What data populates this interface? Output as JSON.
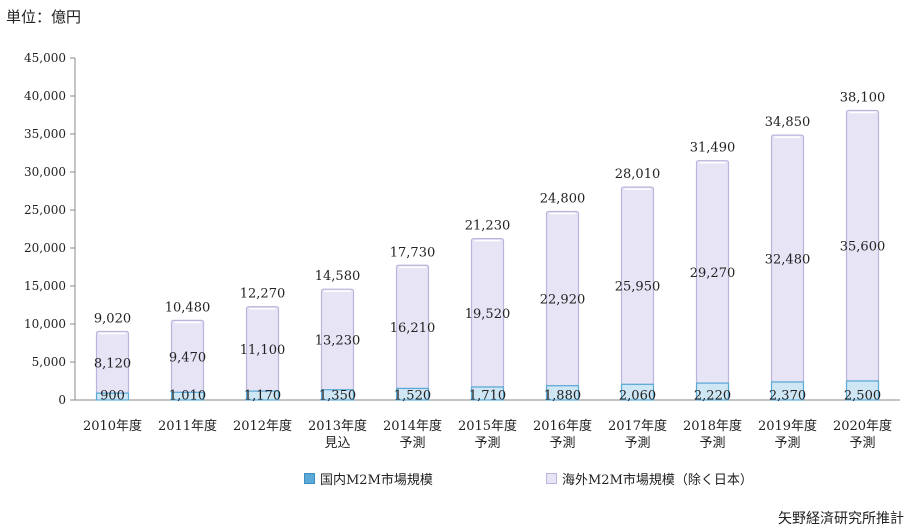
{
  "unit_label": "単位：億円",
  "source_label": "矢野経済研究所推計",
  "colors": {
    "overseas_fill": "#e6e4f5",
    "overseas_stroke": "#b9b5dc",
    "domestic_fill": "#cfe6f4",
    "domestic_stroke": "#5aa9d6",
    "axis": "#888888"
  },
  "chart_data": {
    "type": "bar",
    "stacked": true,
    "categories": [
      [
        "2010年度"
      ],
      [
        "2011年度"
      ],
      [
        "2012年度"
      ],
      [
        "2013年度",
        "見込"
      ],
      [
        "2014年度",
        "予測"
      ],
      [
        "2015年度",
        "予測"
      ],
      [
        "2016年度",
        "予測"
      ],
      [
        "2017年度",
        "予測"
      ],
      [
        "2018年度",
        "予測"
      ],
      [
        "2019年度",
        "予測"
      ],
      [
        "2020年度",
        "予測"
      ]
    ],
    "series": [
      {
        "name": "国内M2M市場規模",
        "values": [
          900,
          1010,
          1170,
          1350,
          1520,
          1710,
          1880,
          2060,
          2220,
          2370,
          2500
        ]
      },
      {
        "name": "海外M2M市場規模（除く日本）",
        "values": [
          8120,
          9470,
          11100,
          13230,
          16210,
          19520,
          22920,
          25950,
          29270,
          32480,
          35600
        ]
      }
    ],
    "totals": [
      9020,
      10480,
      12270,
      14580,
      17730,
      21230,
      24800,
      28010,
      31490,
      34850,
      38100
    ],
    "ylim": [
      0,
      45000
    ],
    "yticks": [
      0,
      5000,
      10000,
      15000,
      20000,
      25000,
      30000,
      35000,
      40000,
      45000
    ],
    "legend_position": "bottom"
  }
}
